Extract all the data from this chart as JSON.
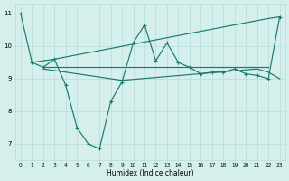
{
  "xlabel": "Humidex (Indice chaleur)",
  "bg_color": "#d4efec",
  "line_color": "#1a7a6e",
  "grid_color": "#b8ddd9",
  "xlim": [
    -0.5,
    23.5
  ],
  "ylim": [
    6.5,
    11.3
  ],
  "xticks": [
    0,
    1,
    2,
    3,
    4,
    5,
    6,
    7,
    8,
    9,
    10,
    11,
    12,
    13,
    14,
    15,
    16,
    17,
    18,
    19,
    20,
    21,
    22,
    23
  ],
  "yticks": [
    7,
    8,
    9,
    10,
    11
  ],
  "series1_x": [
    0,
    1,
    2,
    3,
    4,
    5,
    6,
    7,
    8,
    9,
    10,
    11,
    12,
    13,
    14,
    15,
    16,
    17,
    18,
    19,
    20,
    21,
    22,
    23
  ],
  "series1_y": [
    11.0,
    9.5,
    9.35,
    9.6,
    8.8,
    7.5,
    7.0,
    6.85,
    8.3,
    8.9,
    10.1,
    10.65,
    9.55,
    10.1,
    9.5,
    9.35,
    9.15,
    9.2,
    9.2,
    9.3,
    9.15,
    9.1,
    9.0,
    10.9
  ],
  "series2_x": [
    1,
    3,
    22,
    23
  ],
  "series2_y": [
    9.5,
    9.6,
    10.85,
    10.9
  ],
  "series3_x": [
    2,
    22
  ],
  "series3_y": [
    9.35,
    9.35
  ],
  "series4_x": [
    2,
    9,
    21,
    22,
    23
  ],
  "series4_y": [
    9.3,
    8.95,
    9.3,
    9.2,
    9.0
  ]
}
